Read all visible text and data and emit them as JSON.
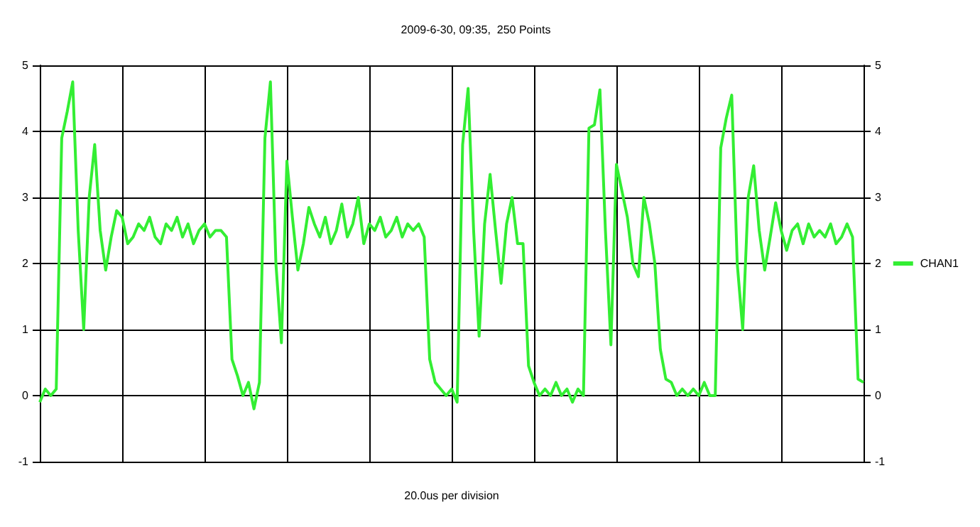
{
  "chart_data": {
    "type": "line",
    "title": "2009-6-30, 09:35,  250 Points",
    "xlabel": "20.0us per division",
    "categories": [
      null,
      null,
      null,
      null,
      null,
      null,
      null,
      null,
      null,
      null,
      null,
      null,
      null,
      null,
      null,
      null,
      null,
      null,
      null,
      null,
      null,
      null,
      null,
      null,
      null,
      null,
      null,
      null,
      null,
      null,
      null,
      null,
      null,
      null,
      null,
      null,
      null,
      null,
      null,
      null,
      null,
      null,
      null,
      null,
      null,
      null,
      null,
      null,
      null,
      null,
      null,
      null,
      null,
      null,
      null,
      null,
      null,
      null,
      null,
      null,
      null,
      null,
      null,
      null,
      null,
      null,
      null,
      null,
      null,
      null,
      null,
      null,
      null,
      null,
      null,
      null,
      null,
      null,
      null,
      null,
      null,
      null,
      null,
      null,
      null,
      null,
      null,
      null,
      null,
      null,
      null,
      null,
      null,
      null,
      null,
      null,
      null,
      null,
      null,
      null,
      null,
      null,
      null,
      null,
      null,
      null,
      null,
      null,
      null,
      null,
      null,
      null,
      null,
      null,
      null,
      null,
      null,
      null,
      null,
      null,
      null,
      null,
      null,
      null,
      null,
      null,
      null,
      null,
      null,
      null,
      null,
      null,
      null,
      null,
      null,
      null,
      null,
      null,
      null,
      null,
      null,
      null,
      null,
      null,
      null,
      null,
      null,
      null,
      null,
      null,
      null
    ],
    "series": [
      {
        "name": "CHAN1",
        "color": "#33ee33",
        "values": [
          -0.1,
          0.1,
          0.0,
          0.1,
          3.9,
          4.3,
          4.75,
          2.5,
          1.0,
          3.0,
          3.8,
          2.5,
          1.9,
          2.4,
          2.8,
          2.7,
          2.3,
          2.4,
          2.6,
          2.5,
          2.7,
          2.4,
          2.3,
          2.6,
          2.5,
          2.7,
          2.4,
          2.6,
          2.3,
          2.5,
          2.6,
          2.4,
          2.5,
          2.5,
          2.4,
          0.55,
          0.3,
          0.0,
          0.2,
          -0.2,
          0.2,
          3.9,
          4.75,
          2.0,
          0.8,
          3.55,
          2.7,
          1.9,
          2.3,
          2.85,
          2.6,
          2.4,
          2.7,
          2.3,
          2.5,
          2.9,
          2.4,
          2.6,
          3.0,
          2.3,
          2.6,
          2.5,
          2.7,
          2.4,
          2.5,
          2.7,
          2.4,
          2.6,
          2.5,
          2.6,
          2.4,
          0.55,
          0.2,
          0.1,
          0.0,
          0.1,
          -0.1,
          3.8,
          4.65,
          2.5,
          0.9,
          2.6,
          3.35,
          2.5,
          1.7,
          2.6,
          3.0,
          2.3,
          2.3,
          0.45,
          0.2,
          0.0,
          0.1,
          0.0,
          0.2,
          0.0,
          0.1,
          -0.1,
          0.1,
          0.0,
          4.05,
          4.1,
          4.63,
          2.5,
          0.77,
          3.5,
          3.1,
          2.7,
          2.0,
          1.8,
          3.0,
          2.6,
          2.0,
          0.7,
          0.25,
          0.2,
          0.0,
          0.1,
          0.0,
          0.1,
          0.0,
          0.2,
          0.0,
          0.0,
          3.75,
          4.2,
          4.55,
          2.0,
          1.0,
          3.0,
          3.48,
          2.5,
          1.9,
          2.4,
          2.92,
          2.5,
          2.2,
          2.5,
          2.6,
          2.3,
          2.6,
          2.4,
          2.5,
          2.4,
          2.6,
          2.3,
          2.4,
          2.6,
          2.4,
          0.25,
          0.2
        ]
      }
    ],
    "ylim": [
      -1,
      5
    ],
    "yticks": [
      -1,
      0,
      1,
      2,
      3,
      4,
      5
    ],
    "y2lim": [
      -1,
      5
    ],
    "y2ticks": [
      -1,
      0,
      1,
      2,
      3,
      4,
      5
    ],
    "grid": true,
    "legend": "right",
    "line_style": "solid",
    "tick_labels": "y"
  }
}
